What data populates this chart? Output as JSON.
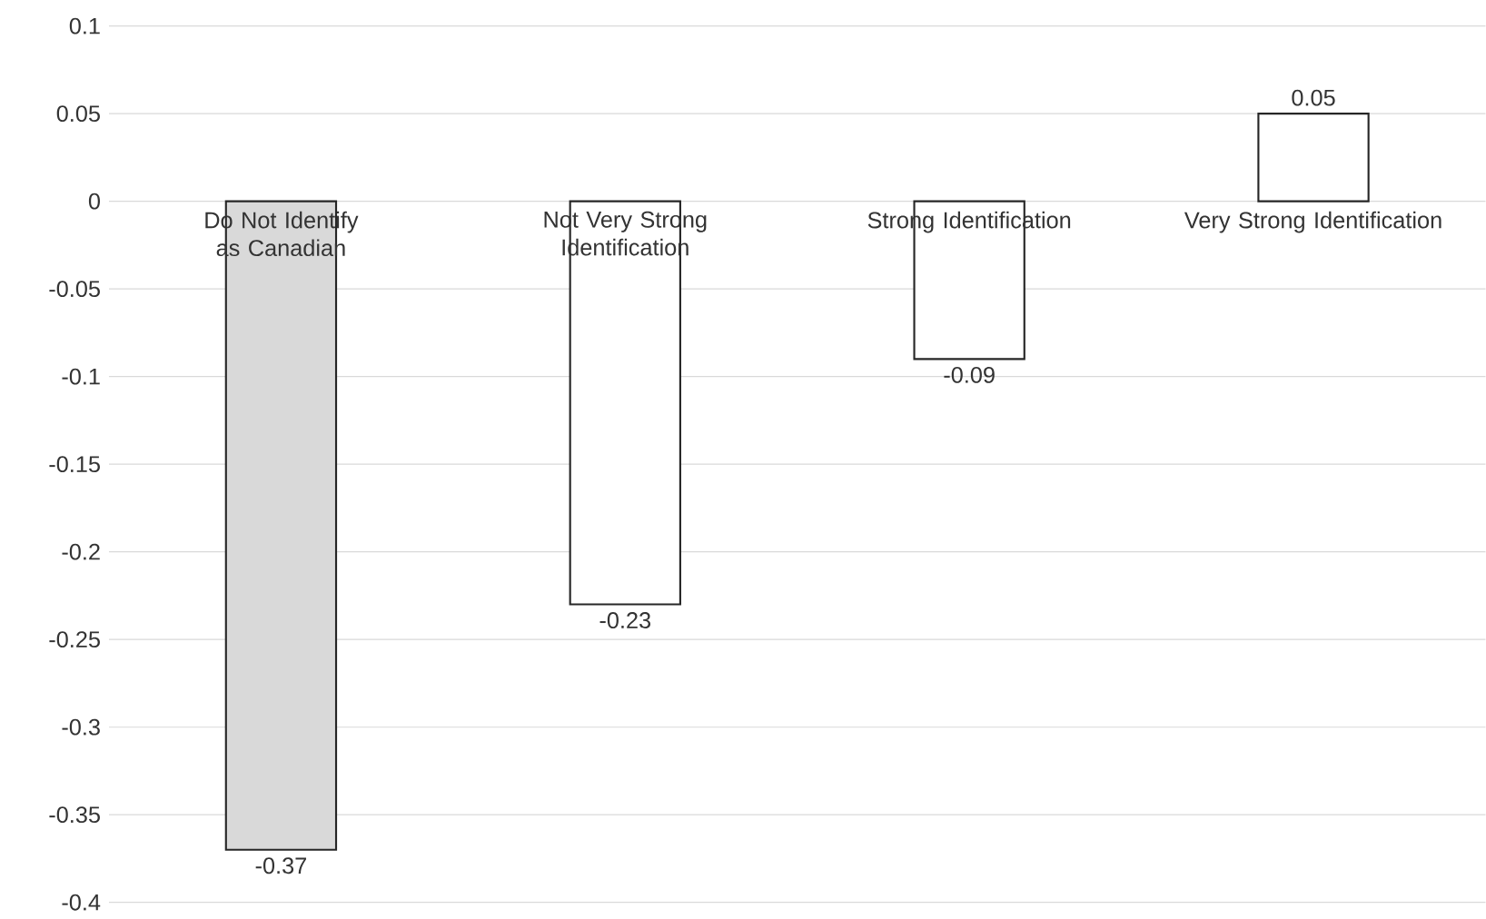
{
  "chart_data": {
    "type": "bar",
    "categories": [
      "Do Not Identify as Canadian",
      "Not Very Strong Identification",
      "Strong Identification",
      "Very Strong Identification"
    ],
    "values": [
      -0.37,
      -0.23,
      -0.09,
      0.05
    ],
    "colors": [
      "#d9d9d9",
      "#ffffff",
      "#ffffff",
      "#ffffff"
    ],
    "ylim": [
      -0.4,
      0.1
    ],
    "yticks": [
      -0.4,
      -0.35,
      -0.3,
      -0.25,
      -0.2,
      -0.15,
      -0.1,
      -0.05,
      0,
      0.05,
      0.1
    ],
    "grid": "y",
    "data_labels": true
  }
}
